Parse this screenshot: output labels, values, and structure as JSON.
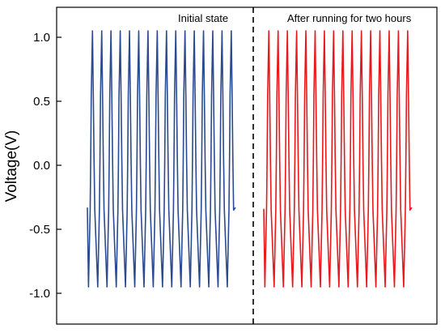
{
  "chart_data": {
    "type": "line",
    "xlabel": "",
    "ylabel": "Voltage(V)",
    "ylim": [
      -1.05,
      1.1
    ],
    "yticks": [
      1.0,
      0.5,
      0.0,
      -0.5,
      -1.0
    ],
    "ytick_labels": [
      "1.0",
      "0.5",
      "0.0",
      "-0.5",
      "-1.0"
    ],
    "grid": false,
    "divider": "dashed vertical line",
    "panels": [
      {
        "annotation": "Initial state",
        "color": "#2b4a8f",
        "cycles": 16,
        "max": 1.05,
        "min": -0.95,
        "start": -0.33,
        "end": -0.33
      },
      {
        "annotation": "After running for two hours",
        "color": "#e8191c",
        "cycles": 16,
        "max": 1.05,
        "min": -0.95,
        "start": -0.34,
        "end": -0.33
      }
    ]
  }
}
